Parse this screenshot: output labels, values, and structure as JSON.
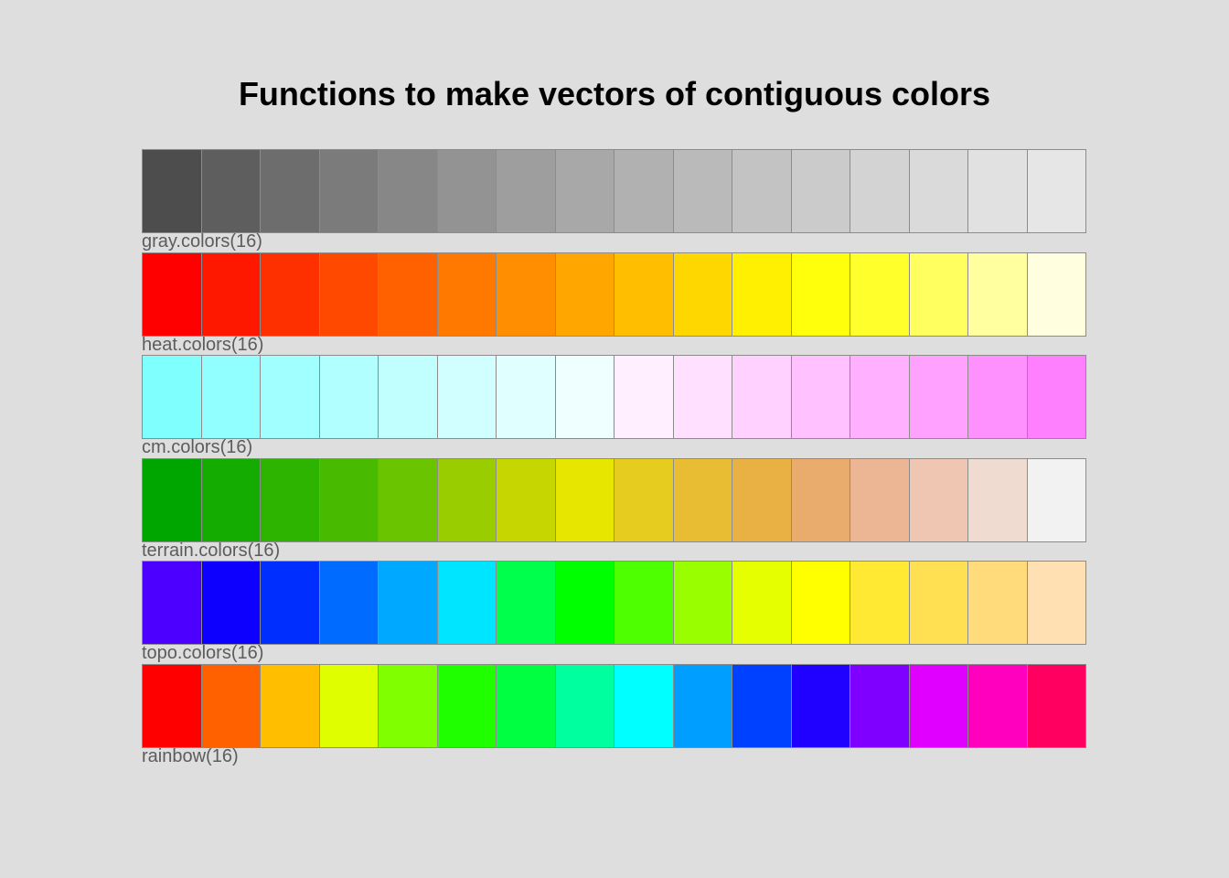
{
  "chart_data": {
    "type": "heatmap",
    "title": "Functions to make vectors of contiguous colors",
    "palettes": [
      {
        "label": "gray.colors(16)",
        "colors": [
          "#4d4d4d",
          "#5e5e5e",
          "#6d6d6d",
          "#7b7b7b",
          "#878787",
          "#939393",
          "#9e9e9e",
          "#a8a8a8",
          "#b1b1b1",
          "#bababa",
          "#c3c3c3",
          "#cbcbcb",
          "#d3d3d3",
          "#dadada",
          "#e1e1e1",
          "#e6e6e6"
        ]
      },
      {
        "label": "heat.colors(16)",
        "colors": [
          "#ff0000",
          "#ff1800",
          "#ff3000",
          "#ff4800",
          "#ff6000",
          "#ff7800",
          "#ff8f00",
          "#ffa700",
          "#ffbf00",
          "#ffd700",
          "#ffef00",
          "#ffff0b",
          "#ffff2b",
          "#ffff60",
          "#ffff9f",
          "#ffffdf"
        ]
      },
      {
        "label": "cm.colors(16)",
        "colors": [
          "#80ffff",
          "#91ffff",
          "#a1ffff",
          "#b1ffff",
          "#c1ffff",
          "#d1ffff",
          "#e0ffff",
          "#efffff",
          "#ffefff",
          "#ffe0ff",
          "#ffd1ff",
          "#ffc1ff",
          "#ffb1ff",
          "#ffa1ff",
          "#ff91ff",
          "#ff80ff"
        ]
      },
      {
        "label": "terrain.colors(16)",
        "colors": [
          "#00a600",
          "#14ac00",
          "#2db400",
          "#48bb00",
          "#6ac400",
          "#9acd00",
          "#c5d600",
          "#e6e600",
          "#e6cc1f",
          "#e8bd34",
          "#e9b044",
          "#eaac6c",
          "#ecb694",
          "#eec6b2",
          "#f0dbd0",
          "#f2f2f2"
        ]
      },
      {
        "label": "topo.colors(16)",
        "colors": [
          "#4c00ff",
          "#0e00ff",
          "#002eff",
          "#006bff",
          "#00a8ff",
          "#00e5ff",
          "#00ff4d",
          "#00ff00",
          "#4dff00",
          "#99ff00",
          "#e6ff00",
          "#ffff00",
          "#ffe933",
          "#ffe053",
          "#ffdb7c",
          "#ffe0b3"
        ]
      },
      {
        "label": "rainbow(16)",
        "colors": [
          "#ff0000",
          "#ff6000",
          "#ffbf00",
          "#dfff00",
          "#80ff00",
          "#20ff00",
          "#00ff40",
          "#00ff9f",
          "#00ffff",
          "#009fff",
          "#0040ff",
          "#2000ff",
          "#8000ff",
          "#df00ff",
          "#ff00bf",
          "#ff0060"
        ]
      }
    ]
  }
}
